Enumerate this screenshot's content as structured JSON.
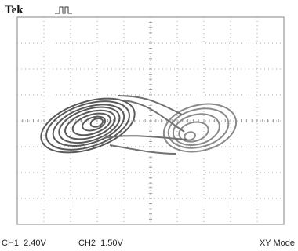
{
  "header": {
    "brand": "Tek"
  },
  "status": {
    "ch1": "CH1  2.40V",
    "ch2": "CH2  1.50V",
    "mode": "XY Mode"
  }
}
